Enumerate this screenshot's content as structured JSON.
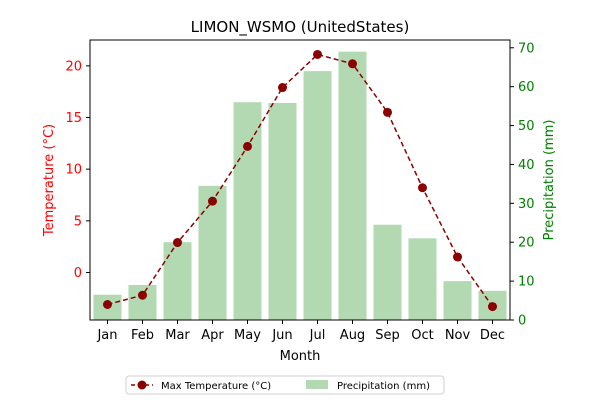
{
  "chart_data": {
    "type": "bar+line",
    "title": "LIMON_WSMO (UnitedStates)",
    "xlabel": "Month",
    "categories": [
      "Jan",
      "Feb",
      "Mar",
      "Apr",
      "May",
      "Jun",
      "Jul",
      "Aug",
      "Sep",
      "Oct",
      "Nov",
      "Dec"
    ],
    "left_axis": {
      "label": "Temperature (°C)",
      "range": [
        -4.6,
        22.5
      ],
      "ticks": [
        0,
        5,
        10,
        15,
        20
      ],
      "color": "#ff0000"
    },
    "right_axis": {
      "label": "Precipitation (mm)",
      "range": [
        0,
        72
      ],
      "ticks": [
        0,
        10,
        20,
        30,
        40,
        50,
        60,
        70
      ],
      "color": "#008000"
    },
    "series": [
      {
        "name": "Max Temperature (°C)",
        "kind": "line",
        "axis": "left",
        "color": "#8b0000",
        "values": [
          -3.1,
          -2.2,
          2.9,
          6.9,
          12.2,
          17.9,
          21.1,
          20.2,
          15.5,
          8.2,
          1.5,
          -3.3
        ]
      },
      {
        "name": "Precipitation (mm)",
        "kind": "bar",
        "axis": "right",
        "color": "#b2d9b2",
        "values": [
          6.5,
          9,
          20,
          34.5,
          56,
          55.8,
          64,
          69,
          24.5,
          21,
          10,
          7.5
        ]
      }
    ],
    "grid": false,
    "legend_position": "bottom-center"
  }
}
